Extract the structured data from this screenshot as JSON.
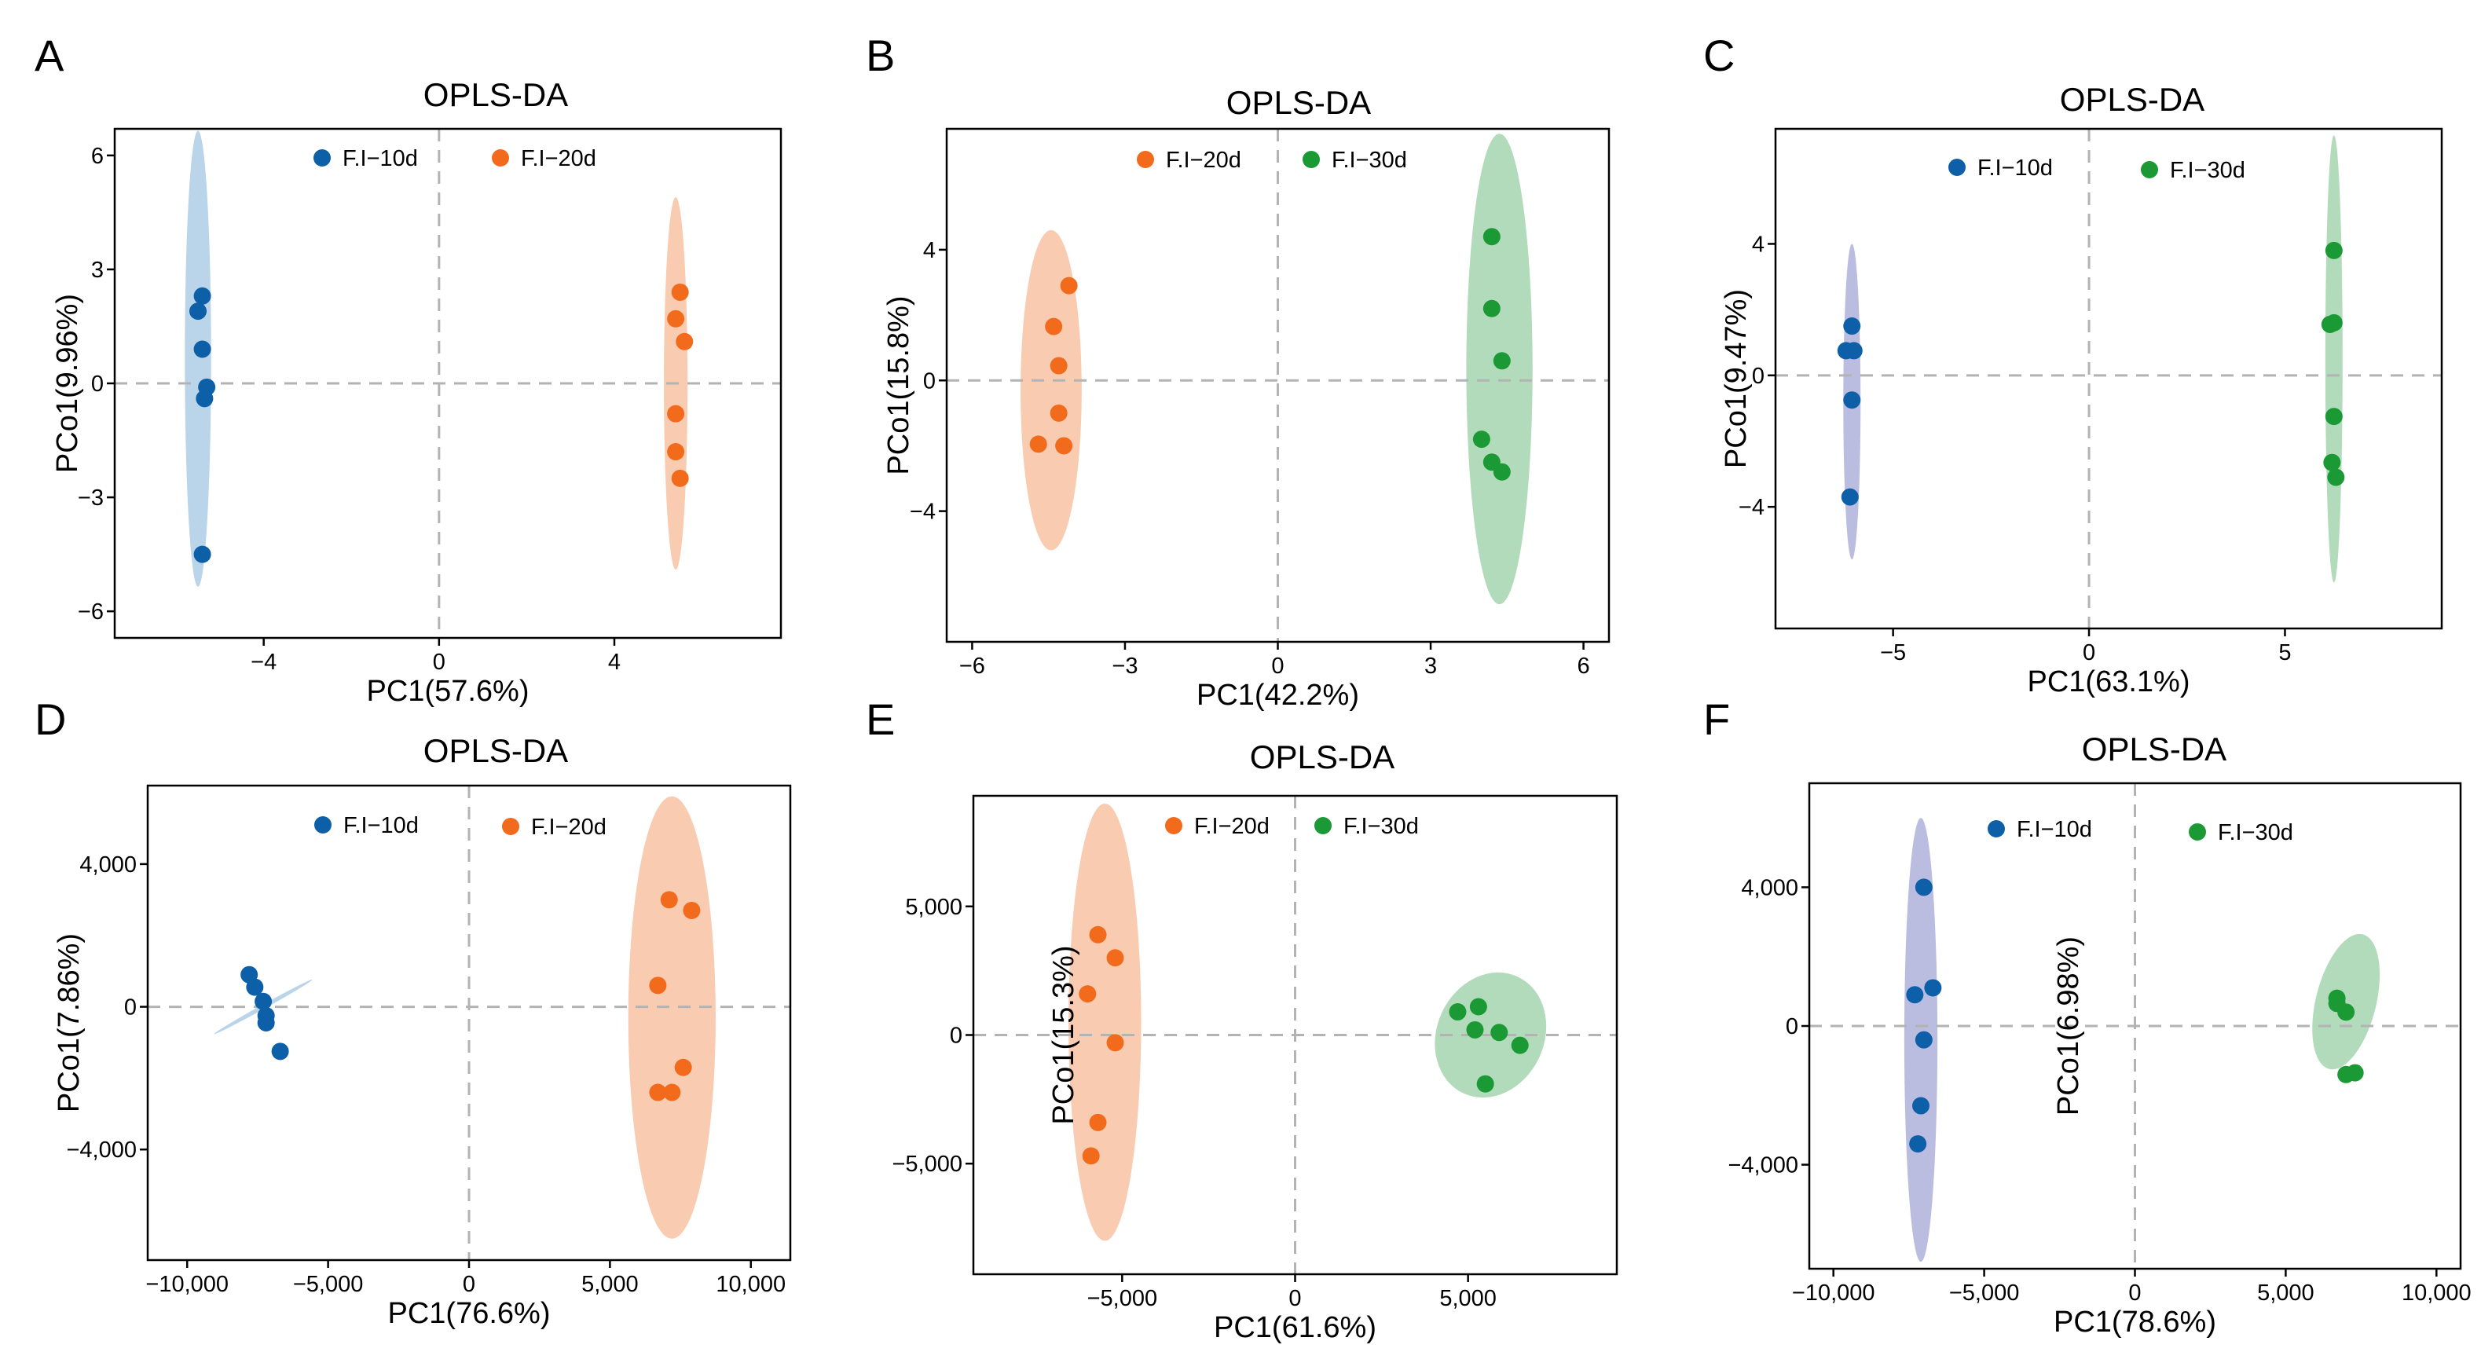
{
  "figure": {
    "colors": {
      "blue": "#0d5fa8",
      "orange": "#f26b1d",
      "green": "#1b9935",
      "ellipse_blue": "#b3cfe8",
      "ellipse_orange": "#f8c7a8",
      "ellipse_green": "#a9d7b2",
      "ellipse_lavender": "#b2b6dd"
    }
  },
  "chart_data": [
    {
      "panel": "A",
      "type": "scatter",
      "title": "OPLS-DA",
      "xlabel": "PC1(57.6%)",
      "ylabel": "PCo1(9.96%)",
      "xlim": [
        -7.4,
        7.8
      ],
      "ylim": [
        -6.7,
        6.7
      ],
      "xticks": [
        -4,
        0,
        4
      ],
      "xtick_labels": [
        "−4",
        "0",
        "4"
      ],
      "yticks": [
        -6,
        -3,
        0,
        3,
        6
      ],
      "ytick_labels": [
        "−6",
        "−3",
        "0",
        "3",
        "6"
      ],
      "legend_position": "top",
      "series": [
        {
          "name": "F.I−10d",
          "color": "blue",
          "ellipse_color": "ellipse_blue",
          "ellipse": {
            "cx": -5.5,
            "cy": 0.65,
            "rx": 0.3,
            "ry": 6.0
          },
          "x": [
            -5.4,
            -5.5,
            -5.4,
            -5.3,
            -5.35,
            -5.4
          ],
          "y": [
            2.3,
            1.9,
            0.9,
            -0.1,
            -0.4,
            -4.5
          ]
        },
        {
          "name": "F.I−20d",
          "color": "orange",
          "ellipse_color": "ellipse_orange",
          "ellipse": {
            "cx": 5.4,
            "cy": 0.0,
            "rx": 0.27,
            "ry": 4.9
          },
          "x": [
            5.5,
            5.4,
            5.6,
            5.4,
            5.4,
            5.5
          ],
          "y": [
            2.4,
            1.7,
            1.1,
            -0.8,
            -1.8,
            -2.5
          ]
        }
      ]
    },
    {
      "panel": "B",
      "type": "scatter",
      "title": "OPLS-DA",
      "xlabel": "PC1(42.2%)",
      "ylabel": "PCo1(15.8%)",
      "xlim": [
        -6.5,
        6.5
      ],
      "ylim": [
        -8.0,
        7.7
      ],
      "xticks": [
        -6,
        -3,
        0,
        3,
        6
      ],
      "xtick_labels": [
        "−6",
        "−3",
        "0",
        "3",
        "6"
      ],
      "yticks": [
        -4,
        0,
        4
      ],
      "ytick_labels": [
        "−4",
        "0",
        "4"
      ],
      "legend_position": "top",
      "series": [
        {
          "name": "F.I−20d",
          "color": "orange",
          "ellipse_color": "ellipse_orange",
          "ellipse": {
            "cx": -4.45,
            "cy": -0.3,
            "rx": 0.6,
            "ry": 4.9
          },
          "x": [
            -4.1,
            -4.4,
            -4.3,
            -4.3,
            -4.7,
            -4.2
          ],
          "y": [
            2.9,
            1.65,
            0.45,
            -1.0,
            -1.95,
            -2.0
          ]
        },
        {
          "name": "F.I−30d",
          "color": "green",
          "ellipse_color": "ellipse_green",
          "ellipse": {
            "cx": 4.35,
            "cy": 0.35,
            "rx": 0.65,
            "ry": 7.2
          },
          "x": [
            4.2,
            4.2,
            4.4,
            4.0,
            4.2,
            4.4
          ],
          "y": [
            4.4,
            2.2,
            0.6,
            -1.8,
            -2.5,
            -2.8
          ]
        }
      ]
    },
    {
      "panel": "C",
      "type": "scatter",
      "title": "OPLS-DA",
      "xlabel": "PC1(63.1%)",
      "ylabel": "PCo1(9.47%)",
      "xlim": [
        -8.0,
        9.0
      ],
      "ylim": [
        -7.7,
        7.5
      ],
      "xticks": [
        -5,
        0,
        5
      ],
      "xtick_labels": [
        "−5",
        "0",
        "5"
      ],
      "yticks": [
        -4,
        0,
        4
      ],
      "ytick_labels": [
        "−4",
        "0",
        "4"
      ],
      "legend_position": "top",
      "series": [
        {
          "name": "F.I−10d",
          "color": "blue",
          "ellipse_color": "ellipse_lavender",
          "ellipse": {
            "cx": -6.05,
            "cy": -0.8,
            "rx": 0.22,
            "ry": 4.8
          },
          "x": [
            -6.05,
            -6.2,
            -6.0,
            -6.05,
            -6.1
          ],
          "y": [
            1.5,
            0.75,
            0.75,
            -0.75,
            -3.7
          ]
        },
        {
          "name": "F.I−30d",
          "color": "green",
          "ellipse_color": "ellipse_green",
          "ellipse": {
            "cx": 6.25,
            "cy": 0.5,
            "rx": 0.22,
            "ry": 6.8
          },
          "x": [
            6.25,
            6.15,
            6.25,
            6.25,
            6.2,
            6.3
          ],
          "y": [
            3.8,
            1.55,
            1.6,
            -1.25,
            -2.65,
            -3.1
          ]
        }
      ]
    },
    {
      "panel": "D",
      "type": "scatter",
      "title": "OPLS-DA",
      "xlabel": "PC1(76.6%)",
      "ylabel": "PCo1(7.86%)",
      "xlim": [
        -11400,
        11400
      ],
      "ylim": [
        -7100,
        6200
      ],
      "xticks": [
        -10000,
        -5000,
        0,
        5000,
        10000
      ],
      "xtick_labels": [
        "−10,000",
        "−5,000",
        "0",
        "5,000",
        "10,000"
      ],
      "yticks": [
        -4000,
        0,
        4000
      ],
      "ytick_labels": [
        "−4,000",
        "0",
        "4,000"
      ],
      "legend_position": "top",
      "series": [
        {
          "name": "F.I−10d",
          "color": "blue",
          "ellipse_color": "ellipse_blue",
          "ellipse": {
            "cx": -7300,
            "cy": 0,
            "rx": 2000,
            "ry": 60,
            "angle_deg": 29
          },
          "x": [
            -7800,
            -7600,
            -7300,
            -7200,
            -7200,
            -6700
          ],
          "y": [
            900,
            550,
            150,
            -250,
            -450,
            -1250
          ]
        },
        {
          "name": "F.I−20d",
          "color": "orange",
          "ellipse_color": "ellipse_orange",
          "ellipse": {
            "cx": 7200,
            "cy": -300,
            "rx": 1550,
            "ry": 6200
          },
          "x": [
            7100,
            7900,
            6700,
            7600,
            6700,
            7200
          ],
          "y": [
            3000,
            2700,
            600,
            -1700,
            -2400,
            -2400
          ]
        }
      ]
    },
    {
      "panel": "E",
      "type": "scatter",
      "title": "OPLS-DA",
      "xlabel": "PC1(61.6%)",
      "ylabel": "PCo1(15.3%)",
      "xlim": [
        -9300,
        9300
      ],
      "ylim": [
        -9300,
        9300
      ],
      "xticks": [
        -5000,
        0,
        5000
      ],
      "xtick_labels": [
        "−5,000",
        "0",
        "5,000"
      ],
      "yticks": [
        -5000,
        0,
        5000
      ],
      "ytick_labels": [
        "−5,000",
        "0",
        "5,000"
      ],
      "legend_position": "top",
      "series": [
        {
          "name": "F.I−20d",
          "color": "orange",
          "ellipse_color": "ellipse_orange",
          "ellipse": {
            "cx": -5500,
            "cy": 500,
            "rx": 1050,
            "ry": 8500
          },
          "x": [
            -5700,
            -5200,
            -6000,
            -5200,
            -5700,
            -5900
          ],
          "y": [
            3900,
            3000,
            1600,
            -300,
            -3400,
            -4700
          ]
        },
        {
          "name": "F.I−30d",
          "color": "green",
          "ellipse_color": "ellipse_green",
          "ellipse": {
            "cx": 5650,
            "cy": 0,
            "rx": 1550,
            "ry": 2500,
            "angle_deg": -25
          },
          "x": [
            4700,
            5300,
            5200,
            5900,
            6500,
            5500
          ],
          "y": [
            900,
            1100,
            200,
            100,
            -400,
            -1900
          ]
        }
      ]
    },
    {
      "panel": "F",
      "type": "scatter",
      "title": "OPLS-DA",
      "xlabel": "PC1(78.6%)",
      "ylabel": "PCo1(6.98%)",
      "xlim": [
        -10800,
        10800
      ],
      "ylim": [
        -7000,
        7000
      ],
      "xticks": [
        -10000,
        -5000,
        0,
        5000,
        10000
      ],
      "xtick_labels": [
        "−10,000",
        "−5,000",
        "0",
        "5,000",
        "10,000"
      ],
      "yticks": [
        -4000,
        0,
        4000
      ],
      "ytick_labels": [
        "−4,000",
        "0",
        "4,000"
      ],
      "legend_position": "top",
      "series": [
        {
          "name": "F.I−10d",
          "color": "blue",
          "ellipse_color": "ellipse_lavender",
          "ellipse": {
            "cx": -7100,
            "cy": -400,
            "rx": 550,
            "ry": 6400
          },
          "x": [
            -7000,
            -6700,
            -7300,
            -7000,
            -7100,
            -7200
          ],
          "y": [
            4000,
            1100,
            900,
            -400,
            -2300,
            -3400
          ]
        },
        {
          "name": "F.I−30d",
          "color": "green",
          "ellipse_color": "ellipse_green",
          "ellipse": {
            "cx": 7000,
            "cy": 700,
            "rx": 1000,
            "ry": 2000,
            "angle_deg": -14
          },
          "x": [
            6700,
            6700,
            7000,
            7000,
            7300
          ],
          "y": [
            800,
            650,
            400,
            -1400,
            -1350
          ]
        }
      ]
    }
  ]
}
